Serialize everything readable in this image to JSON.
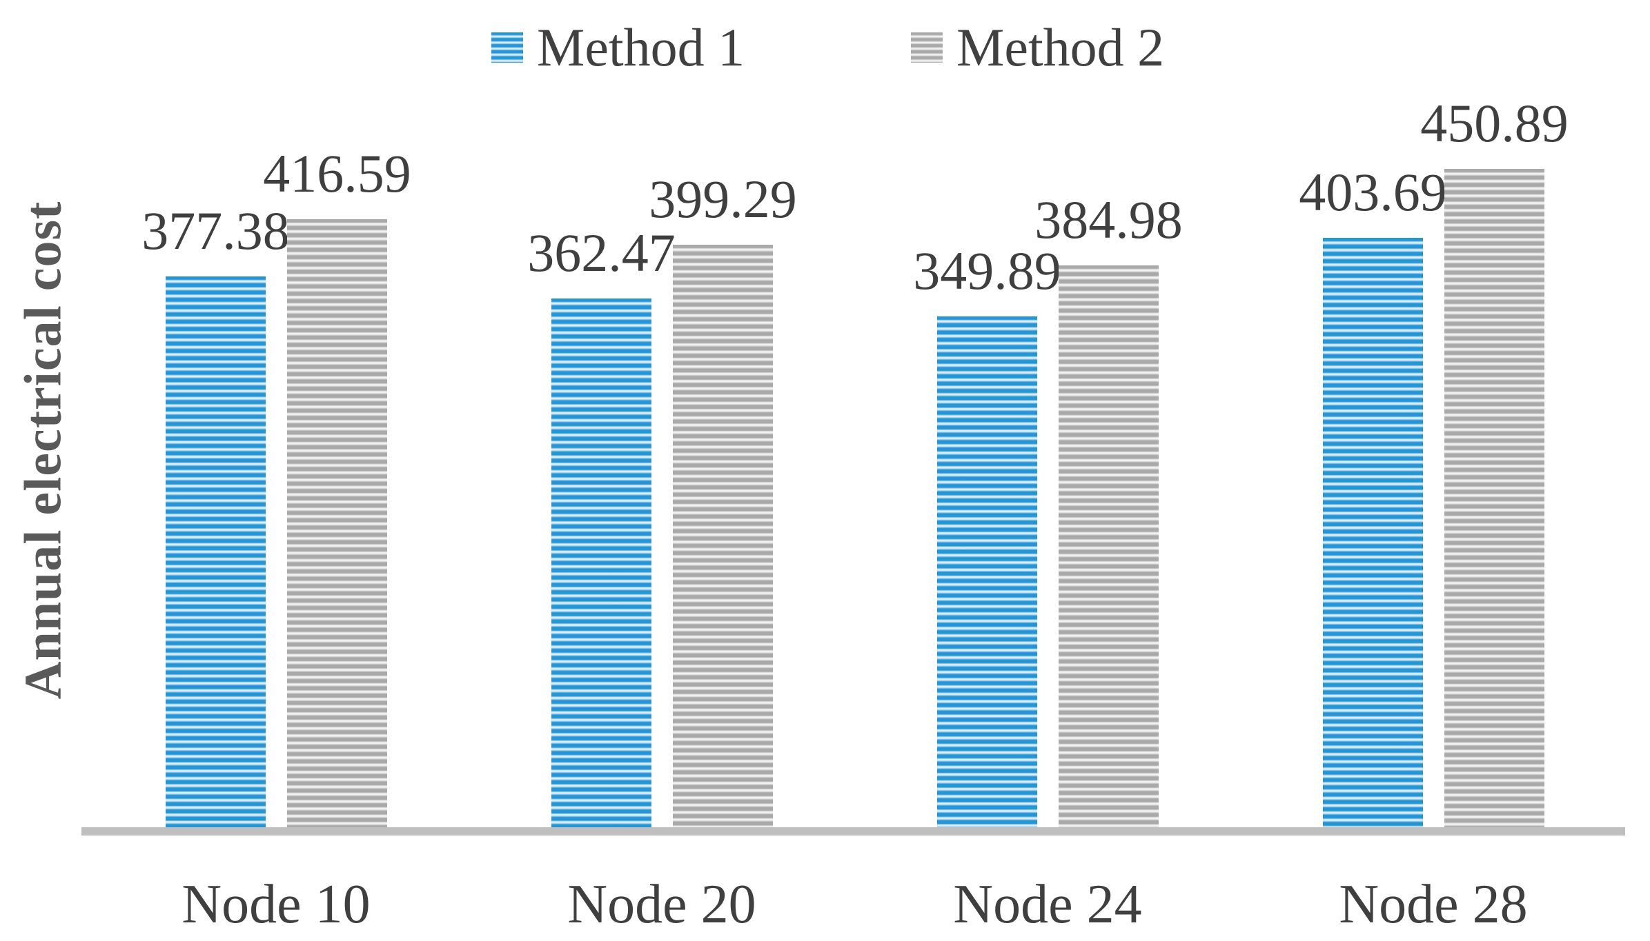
{
  "legend": {
    "items": [
      {
        "label": "Method 1",
        "series_key": "m1"
      },
      {
        "label": "Method 2",
        "series_key": "m2"
      }
    ]
  },
  "y_axis": {
    "label": "Annual electrical cost"
  },
  "colors": {
    "method1_stripe_dark": "#2695D6",
    "method1_stripe_light": "#D9EDF8",
    "method2_stripe_dark": "#A9A9A9",
    "method2_stripe_light": "#F1F1F1",
    "axis_line": "#BFBFBF",
    "value_label_text": "#3F3F3F",
    "axis_title_text": "#595959"
  },
  "chart_data": {
    "type": "bar",
    "categories": [
      "Node 10",
      "Node 20",
      "Node 24",
      "Node 28"
    ],
    "series": [
      {
        "name": "Method 1",
        "values": [
          377.38,
          362.47,
          349.89,
          403.69
        ]
      },
      {
        "name": "Method 2",
        "values": [
          416.59,
          399.29,
          384.98,
          450.89
        ]
      }
    ],
    "title": "",
    "xlabel": "",
    "ylabel": "Annual electrical cost",
    "ylim": [
      0,
      480
    ],
    "grid": false,
    "legend_position": "top",
    "data_labels": "outside-end"
  }
}
